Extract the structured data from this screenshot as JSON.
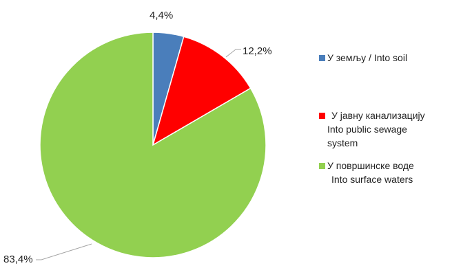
{
  "chart_data": {
    "type": "pie",
    "title": "",
    "start_angle_deg": 90,
    "direction": "clockwise",
    "legend_position": "right",
    "slices": [
      {
        "label_lines": [
          "У земљу / Into soil"
        ],
        "value": 4.4,
        "value_label": "4,4%",
        "color": "#4a7ebb"
      },
      {
        "label_lines": [
          "У јавну канализацију",
          "Into public sewage",
          "system"
        ],
        "value": 12.2,
        "value_label": "12,2%",
        "color": "#ff0000"
      },
      {
        "label_lines": [
          "У површинске воде",
          "Into surface waters"
        ],
        "value": 83.4,
        "value_label": "83,4%",
        "color": "#92d050"
      }
    ]
  }
}
